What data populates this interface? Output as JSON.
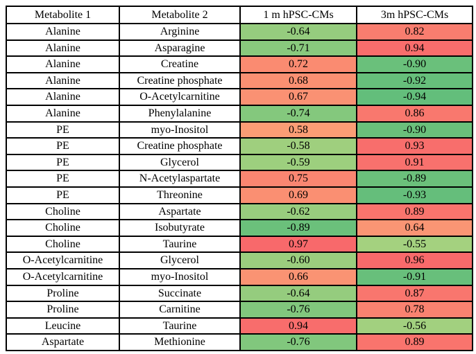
{
  "chart_data": {
    "type": "table",
    "columns": [
      "Metabolite 1",
      "Metabolite 2",
      "1 m hPSC-CMs",
      "3m hPSC-CMs"
    ],
    "rows": [
      [
        "Alanine",
        "Arginine",
        "-0.64",
        "0.82"
      ],
      [
        "Alanine",
        "Asparagine",
        "-0.71",
        "0.94"
      ],
      [
        "Alanine",
        "Creatine",
        "0.72",
        "-0.90"
      ],
      [
        "Alanine",
        "Creatine phosphate",
        "0.68",
        "-0.92"
      ],
      [
        "Alanine",
        "O-Acetylcarnitine",
        "0.67",
        "-0.94"
      ],
      [
        "Alanine",
        "Phenylalanine",
        "-0.74",
        "0.86"
      ],
      [
        "PE",
        "myo-Inositol",
        "0.58",
        "-0.90"
      ],
      [
        "PE",
        "Creatine phosphate",
        "-0.58",
        "0.93"
      ],
      [
        "PE",
        "Glycerol",
        "-0.59",
        "0.91"
      ],
      [
        "PE",
        "N-Acetylaspartate",
        "0.75",
        "-0.89"
      ],
      [
        "PE",
        "Threonine",
        "0.69",
        "-0.93"
      ],
      [
        "Choline",
        "Aspartate",
        "-0.62",
        "0.89"
      ],
      [
        "Choline",
        "Isobutyrate",
        "-0.89",
        "0.64"
      ],
      [
        "Choline",
        "Taurine",
        "0.97",
        "-0.55"
      ],
      [
        "O-Acetylcarnitine",
        "Glycerol",
        "-0.60",
        "0.96"
      ],
      [
        "O-Acetylcarnitine",
        "myo-Inositol",
        "0.66",
        "-0.91"
      ],
      [
        "Proline",
        "Succinate",
        "-0.64",
        "0.87"
      ],
      [
        "Proline",
        "Carnitine",
        "-0.76",
        "0.78"
      ],
      [
        "Leucine",
        "Taurine",
        "0.94",
        "-0.56"
      ],
      [
        "Aspartate",
        "Methionine",
        "-0.76",
        "0.89"
      ]
    ],
    "value_range": [
      -0.94,
      0.97
    ],
    "color_scale": {
      "min": {
        "value": -0.94,
        "color": "#63BE7B"
      },
      "mid": {
        "value": 0,
        "color": "#FFEB84"
      },
      "max": {
        "value": 0.97,
        "color": "#F8696B"
      }
    }
  },
  "style": {
    "border_color": "#000000",
    "text_color": "#000000",
    "header_bg": "#FFFFFF",
    "label_cell_bg": "#FFFFFF"
  }
}
